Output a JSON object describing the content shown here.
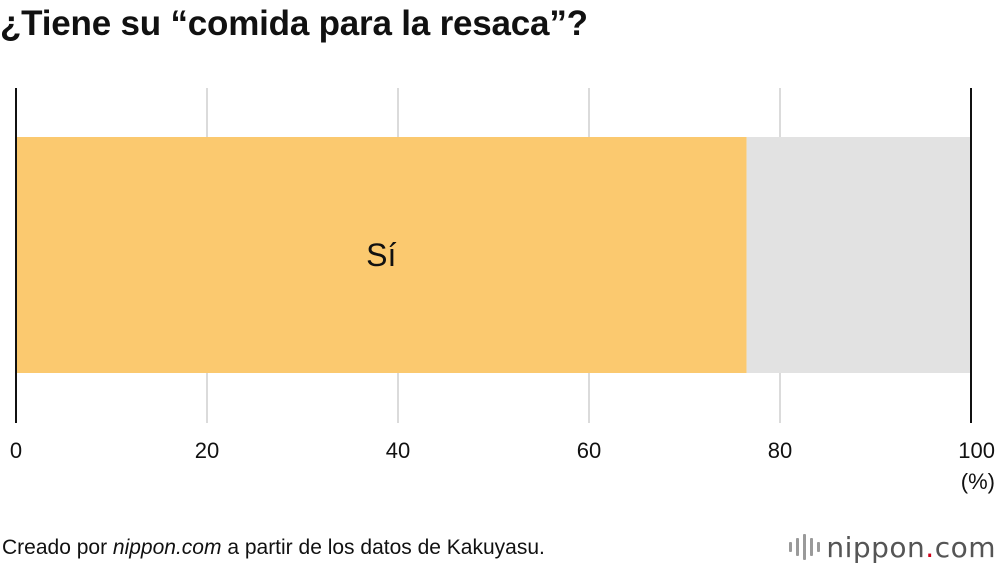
{
  "title": "¿Tiene su “comida para la resaca”?",
  "source": {
    "prefix": "Creado por ",
    "site": "nippon.com",
    "suffix": " a partir de los datos de Kakuyasu."
  },
  "logo": {
    "name": "nippon",
    "dot": ".",
    "tld": "com"
  },
  "colors": {
    "yes": "#fbc96f",
    "no": "#e2e2e2",
    "grid": "#cfcfcf",
    "axis": "#111111"
  },
  "chart_data": {
    "type": "bar",
    "orientation": "horizontal-stacked",
    "series": [
      {
        "name": "Sí",
        "value": 76.5
      },
      {
        "name": "",
        "value": 23.5
      }
    ],
    "xlim": [
      0,
      100
    ],
    "ticks": [
      "0",
      "20",
      "40",
      "60",
      "80",
      "100"
    ],
    "unit_label": "(%)",
    "grid": true
  }
}
